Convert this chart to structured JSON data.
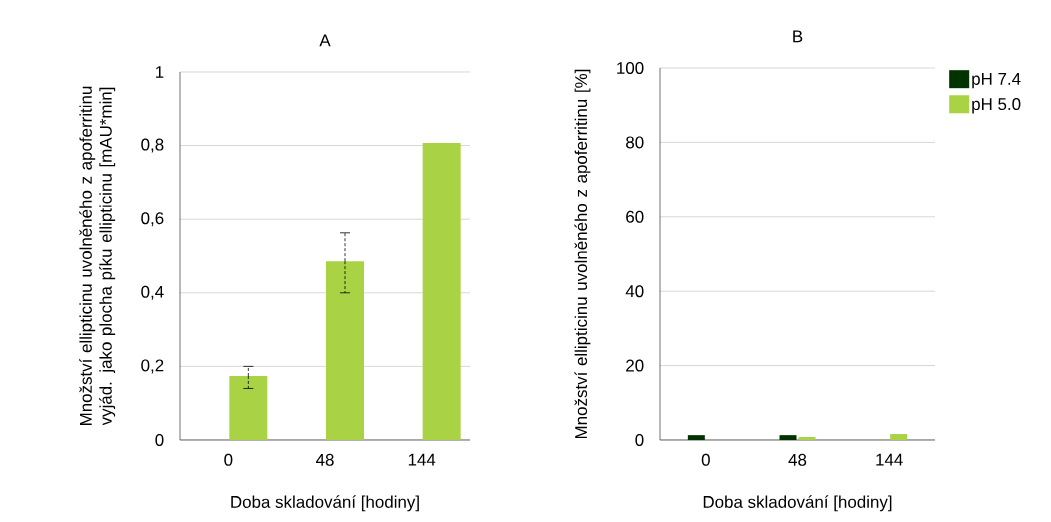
{
  "chart_data": [
    {
      "type": "bar",
      "title": "A",
      "xlabel": "Doba skladování [hodiny]",
      "ylabel": "Množství ellipticinu uvolněného z apoferritinu vyjád. jako plocha píku ellipticinu [mAU*min]",
      "categories": [
        "0",
        "48",
        "144"
      ],
      "series": [
        {
          "color": "#aad245",
          "values": [
            0.174,
            0.486,
            0.807
          ],
          "errors": [
            [
              0.14,
              0.2
            ],
            [
              0.4,
              0.563
            ],
            null
          ]
        }
      ],
      "ylim": [
        0,
        1
      ],
      "yticks": [
        0,
        {
          "value": 0.2,
          "label": "0,2"
        },
        {
          "value": 0.4,
          "label": "0,4"
        },
        {
          "value": 0.6,
          "label": "0,6"
        },
        {
          "value": 0.8,
          "label": "0,8"
        },
        1
      ],
      "grid": "y"
    },
    {
      "type": "bar",
      "title": "B",
      "xlabel": "Doba skladování [hodiny]",
      "ylabel": "Množství ellipticinu uvolněného z apoferritinu [%]",
      "categories": [
        "0",
        "48",
        "144"
      ],
      "series": [
        {
          "name": "pH 7.4",
          "color": "#003300",
          "values": [
            1.3,
            1.3,
            0
          ]
        },
        {
          "name": "pH 5.0",
          "color": "#aad245",
          "values": [
            0,
            0.8,
            1.6
          ]
        }
      ],
      "ylim": [
        0,
        100
      ],
      "yticks": [
        0,
        20,
        40,
        60,
        80,
        100
      ],
      "grid": "y",
      "legend": "top right"
    }
  ]
}
